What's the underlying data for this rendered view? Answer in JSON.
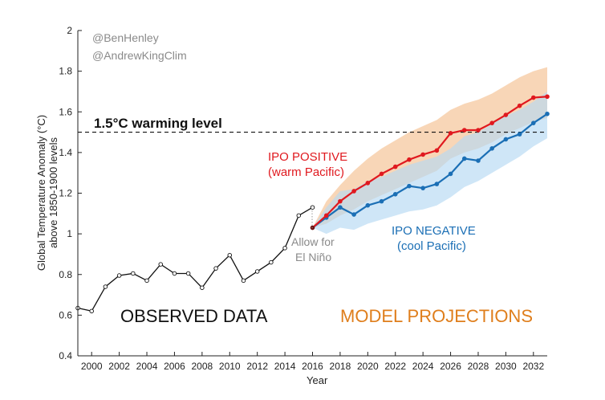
{
  "credits": [
    "@BenHenley",
    "@AndrewKingClim"
  ],
  "chart_data": {
    "type": "line",
    "xlabel": "Year",
    "ylabel": [
      "Global Temperature Anomaly (°C)",
      "above 1850-1900 levels"
    ],
    "xlim": [
      1999,
      2033
    ],
    "ylim": [
      0.4,
      2.0
    ],
    "xticks": [
      2000,
      2002,
      2004,
      2006,
      2008,
      2010,
      2012,
      2014,
      2016,
      2018,
      2020,
      2022,
      2024,
      2026,
      2028,
      2030,
      2032
    ],
    "yticks": [
      0.4,
      0.6,
      0.8,
      1.0,
      1.2,
      1.4,
      1.6,
      1.8,
      2.0
    ],
    "ytick_labels": [
      "0.4",
      "0.6",
      "0.8",
      "1",
      "1.2",
      "1.4",
      "1.6",
      "1.8",
      "2"
    ],
    "grid": false,
    "reference_line": {
      "y": 1.5,
      "label": "1.5°C warming level",
      "style": "dashed"
    },
    "series": [
      {
        "name": "OBSERVED DATA",
        "color": "#111111",
        "marker": "open-circle",
        "x": [
          1999,
          2000,
          2001,
          2002,
          2003,
          2004,
          2005,
          2006,
          2007,
          2008,
          2009,
          2010,
          2011,
          2012,
          2013,
          2014,
          2015,
          2016
        ],
        "y": [
          0.635,
          0.62,
          0.74,
          0.795,
          0.805,
          0.77,
          0.85,
          0.805,
          0.805,
          0.735,
          0.83,
          0.895,
          0.77,
          0.815,
          0.86,
          0.93,
          1.09,
          1.13
        ]
      },
      {
        "name": "IPO POSITIVE",
        "subtitle": "(warm Pacific)",
        "color": "#e0191f",
        "band_color": "#f6c89f",
        "x": [
          2016,
          2017,
          2018,
          2019,
          2020,
          2021,
          2022,
          2023,
          2024,
          2025,
          2026,
          2027,
          2028,
          2029,
          2030,
          2031,
          2032,
          2033
        ],
        "y": [
          1.03,
          1.09,
          1.16,
          1.21,
          1.25,
          1.295,
          1.33,
          1.365,
          1.39,
          1.41,
          1.495,
          1.51,
          1.51,
          1.545,
          1.585,
          1.63,
          1.67,
          1.675
        ],
        "lower": [
          1.03,
          1.05,
          1.09,
          1.12,
          1.16,
          1.19,
          1.22,
          1.25,
          1.28,
          1.31,
          1.37,
          1.4,
          1.42,
          1.45,
          1.49,
          1.52,
          1.55,
          1.57
        ],
        "upper": [
          1.03,
          1.16,
          1.24,
          1.31,
          1.37,
          1.42,
          1.46,
          1.5,
          1.53,
          1.56,
          1.61,
          1.64,
          1.66,
          1.69,
          1.73,
          1.77,
          1.8,
          1.82
        ]
      },
      {
        "name": "IPO NEGATIVE",
        "subtitle": "(cool Pacific)",
        "color": "#1b6fb5",
        "band_color": "#b5d9f3",
        "x": [
          2016,
          2017,
          2018,
          2019,
          2020,
          2021,
          2022,
          2023,
          2024,
          2025,
          2026,
          2027,
          2028,
          2029,
          2030,
          2031,
          2032,
          2033
        ],
        "y": [
          1.03,
          1.08,
          1.13,
          1.095,
          1.14,
          1.16,
          1.195,
          1.235,
          1.225,
          1.245,
          1.295,
          1.37,
          1.36,
          1.42,
          1.465,
          1.49,
          1.545,
          1.59
        ],
        "lower": [
          1.03,
          1.0,
          1.03,
          1.02,
          1.05,
          1.07,
          1.09,
          1.11,
          1.12,
          1.14,
          1.18,
          1.23,
          1.26,
          1.3,
          1.34,
          1.38,
          1.43,
          1.47
        ],
        "upper": [
          1.03,
          1.13,
          1.21,
          1.22,
          1.26,
          1.28,
          1.31,
          1.34,
          1.36,
          1.38,
          1.42,
          1.48,
          1.5,
          1.54,
          1.58,
          1.61,
          1.65,
          1.7
        ]
      }
    ],
    "annotations": {
      "observed_label": "OBSERVED DATA",
      "projections_label": "MODEL PROJECTIONS",
      "projections_color": "#df7e1c",
      "ipo_positive_title": "IPO POSITIVE",
      "ipo_positive_sub": "(warm Pacific)",
      "ipo_negative_title": "IPO NEGATIVE",
      "ipo_negative_sub": "(cool Pacific)",
      "nino_line1": "Allow for",
      "nino_line2": "El Niño"
    }
  }
}
